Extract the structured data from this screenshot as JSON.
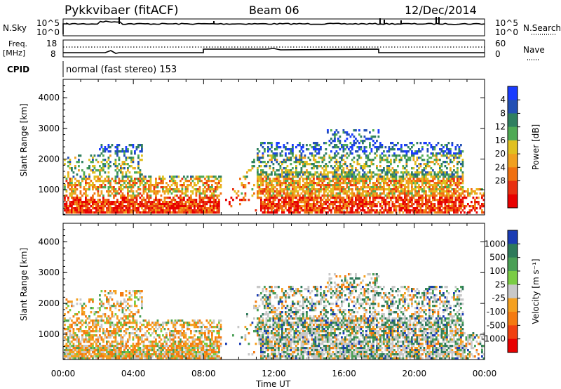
{
  "header": {
    "radar": "Pykkvibaer (fitACF)",
    "beam": "Beam 06",
    "date": "12/Dec/2014"
  },
  "top_panel": {
    "left_label": "N.Sky",
    "right_label": "N.Search",
    "y_ticks_left": [
      "10^5",
      "10^0"
    ],
    "y_ticks_right": [
      "10^5",
      "10^0"
    ]
  },
  "freq_panel": {
    "left_label_1": "Freq.",
    "left_label_2": "[MHz]",
    "right_label": "Nave",
    "y_ticks_left": [
      "18",
      "8"
    ],
    "y_ticks_right": [
      "60",
      "0"
    ]
  },
  "cpid": {
    "label": "CPID",
    "text": "normal (fast stereo) 153"
  },
  "chart_data": [
    {
      "type": "heatmap",
      "title": "",
      "ylabel": "Slant Range [km]",
      "xlabel": "",
      "y_ticks": [
        "1000",
        "2000",
        "3000",
        "4000"
      ],
      "x_ticks": [],
      "ylim": [
        180,
        4600
      ],
      "xlim_hours": [
        0,
        24
      ],
      "colorbar": {
        "label": "Power [dB]",
        "ticks": [
          "4",
          "8",
          "12",
          "16",
          "20",
          "24",
          "28"
        ],
        "colors": [
          "#1a3cff",
          "#2350b4",
          "#2f7f5f",
          "#4faa55",
          "#e0c020",
          "#f0a020",
          "#f07010",
          "#e83010",
          "#e80000"
        ]
      }
    },
    {
      "type": "heatmap",
      "title": "",
      "ylabel": "Slant Range [km]",
      "xlabel": "Time UT",
      "y_ticks": [
        "1000",
        "2000",
        "3000",
        "4000"
      ],
      "x_ticks": [
        "00:00",
        "04:00",
        "08:00",
        "12:00",
        "16:00",
        "20:00",
        "00:00"
      ],
      "ylim": [
        180,
        4600
      ],
      "xlim_hours": [
        0,
        24
      ],
      "colorbar": {
        "label": "Velocity [m s⁻¹]",
        "ticks": [
          "1000",
          "500",
          "100",
          "25",
          "-25",
          "-100",
          "-500",
          "-1000"
        ],
        "colors": [
          "#1a3cb4",
          "#2e7a5a",
          "#4a9f55",
          "#7acc44",
          "#c8c8c8",
          "#f4a020",
          "#f47a10",
          "#f04010",
          "#e80000"
        ]
      }
    }
  ]
}
